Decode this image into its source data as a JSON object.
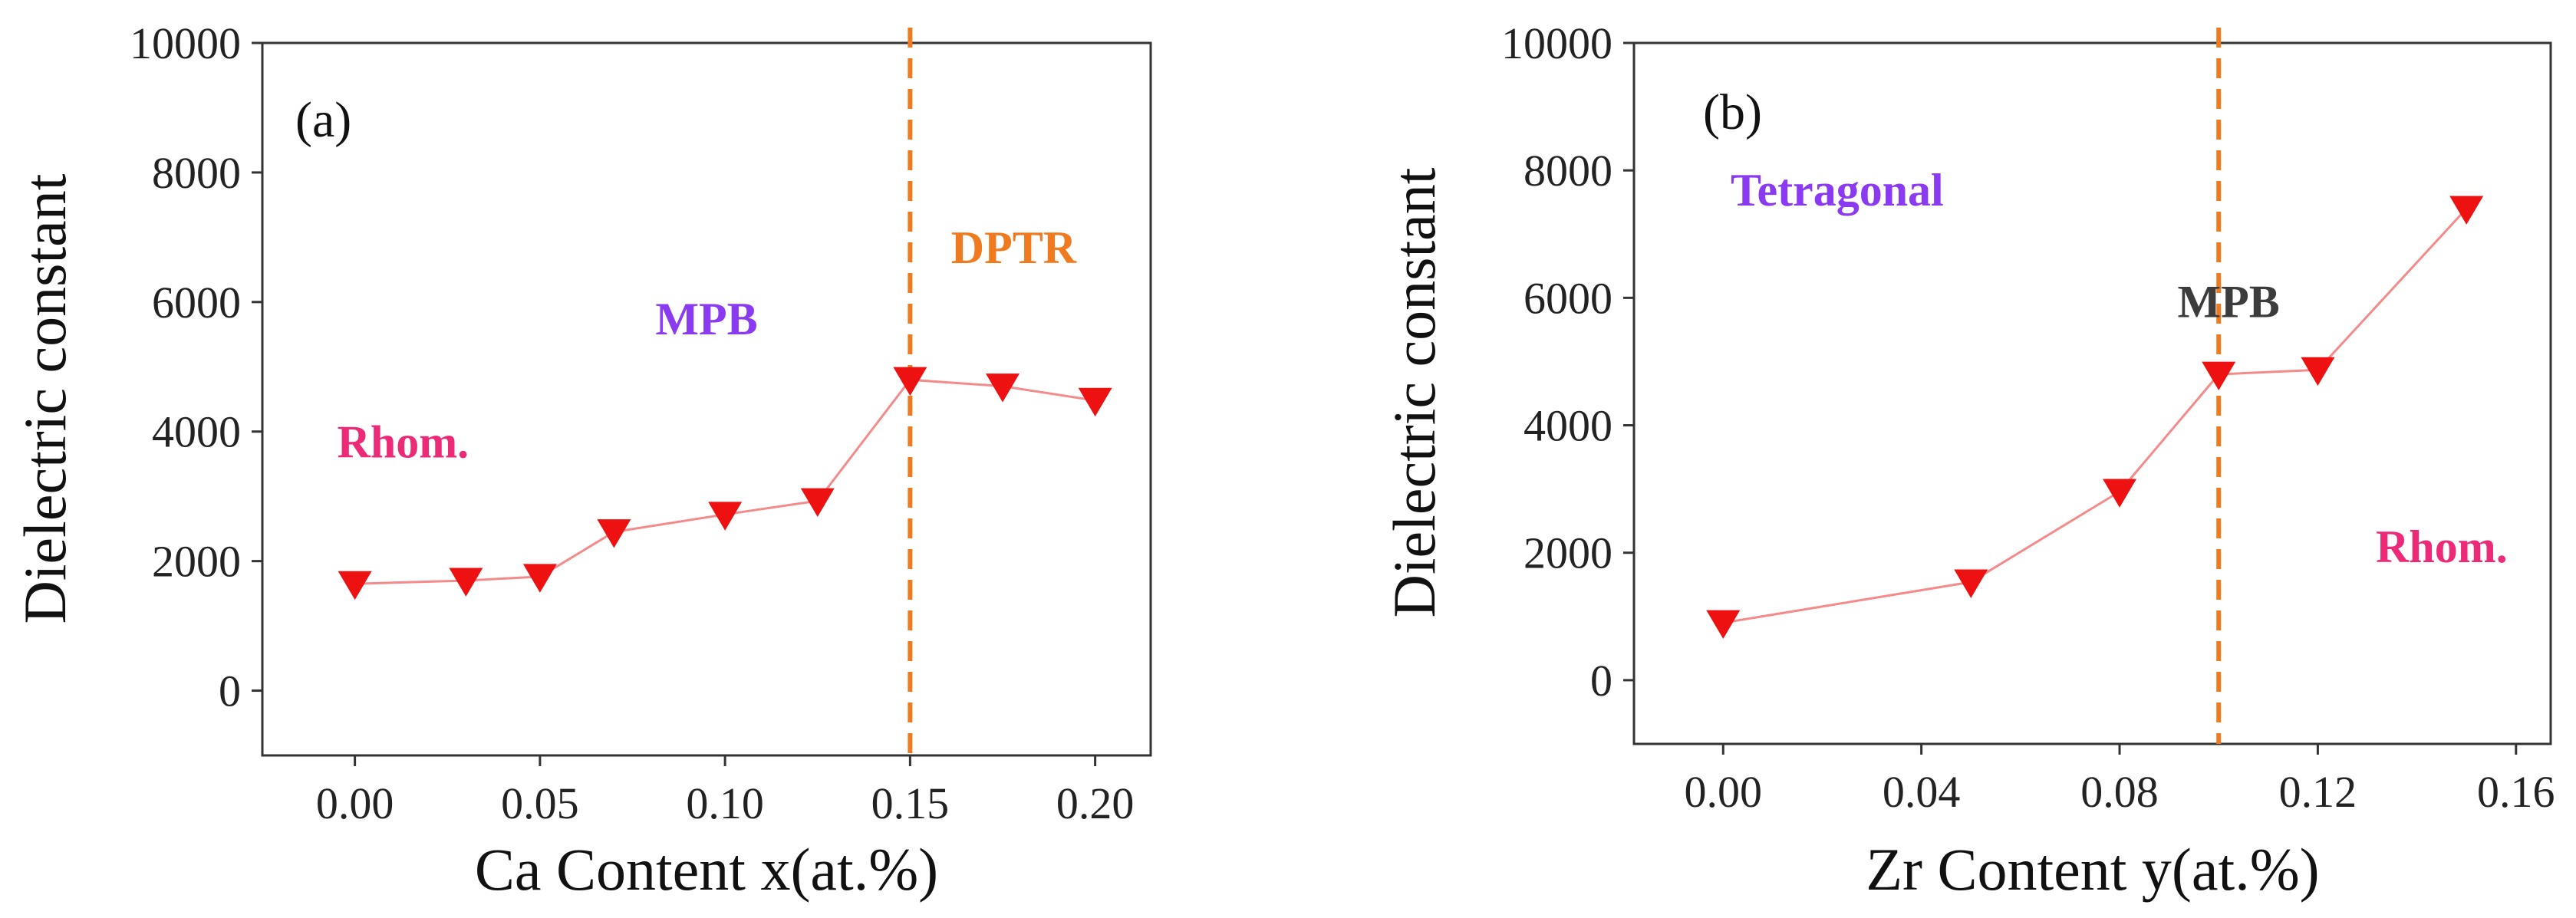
{
  "chart_data": [
    {
      "type": "line",
      "panel_label": "(a)",
      "xlabel": "Ca Content x(at.%)",
      "ylabel": "Dielectric constant",
      "xlim": [
        -0.025,
        0.215
      ],
      "ylim": [
        -1000,
        10000
      ],
      "xticks": [
        "0.00",
        "0.05",
        "0.10",
        "0.15",
        "0.20"
      ],
      "xtick_values": [
        0.0,
        0.05,
        0.1,
        0.15,
        0.2
      ],
      "yticks": [
        "0",
        "2000",
        "4000",
        "6000",
        "8000",
        "10000"
      ],
      "ytick_values": [
        0,
        2000,
        4000,
        6000,
        8000,
        10000
      ],
      "series": [
        {
          "x": [
            0.0,
            0.03,
            0.05,
            0.07,
            0.1,
            0.125,
            0.15,
            0.175,
            0.2
          ],
          "y": [
            1650,
            1700,
            1760,
            2450,
            2720,
            2930,
            4800,
            4700,
            4480
          ],
          "line_color": "#f48a8a",
          "marker": "triangle-down",
          "marker_color": "#ee1111"
        }
      ],
      "vertical_line": {
        "x": 0.15,
        "color": "#f07a20",
        "style": "dashed"
      },
      "annotations": [
        {
          "text": "Rhom.",
          "color": "#ec2a78",
          "at": [
            0.013,
            3600
          ]
        },
        {
          "text": "MPB",
          "color": "#8a3af0",
          "at": [
            0.095,
            5500
          ]
        },
        {
          "text": "DPTR",
          "color": "#f07a20",
          "at": [
            0.178,
            6600
          ]
        }
      ]
    },
    {
      "type": "line",
      "panel_label": "(b)",
      "xlabel": "Zr Content y(at.%)",
      "ylabel": "Dielectric constant",
      "xlim": [
        -0.018,
        0.167
      ],
      "ylim": [
        -1000,
        10000
      ],
      "xticks": [
        "0.00",
        "0.04",
        "0.08",
        "0.12",
        "0.16"
      ],
      "xtick_values": [
        0.0,
        0.04,
        0.08,
        0.12,
        0.16
      ],
      "yticks": [
        "0",
        "2000",
        "4000",
        "6000",
        "8000",
        "10000"
      ],
      "ytick_values": [
        0,
        2000,
        4000,
        6000,
        8000,
        10000
      ],
      "series": [
        {
          "x": [
            0.0,
            0.05,
            0.08,
            0.1,
            0.12,
            0.15
          ],
          "y": [
            900,
            1540,
            2960,
            4800,
            4870,
            7400
          ],
          "line_color": "#f48a8a",
          "marker": "triangle-down",
          "marker_color": "#ee1111"
        }
      ],
      "vertical_line": {
        "x": 0.1,
        "color": "#f07a20",
        "style": "dashed"
      },
      "annotations": [
        {
          "text": "Tetragonal",
          "color": "#8a3af0",
          "at": [
            0.023,
            7450
          ]
        },
        {
          "text": "MPB",
          "color": "#3c3c3c",
          "at": [
            0.102,
            5700
          ]
        },
        {
          "text": "Rhom.",
          "color": "#ec2a78",
          "at": [
            0.145,
            1850
          ]
        }
      ]
    }
  ]
}
